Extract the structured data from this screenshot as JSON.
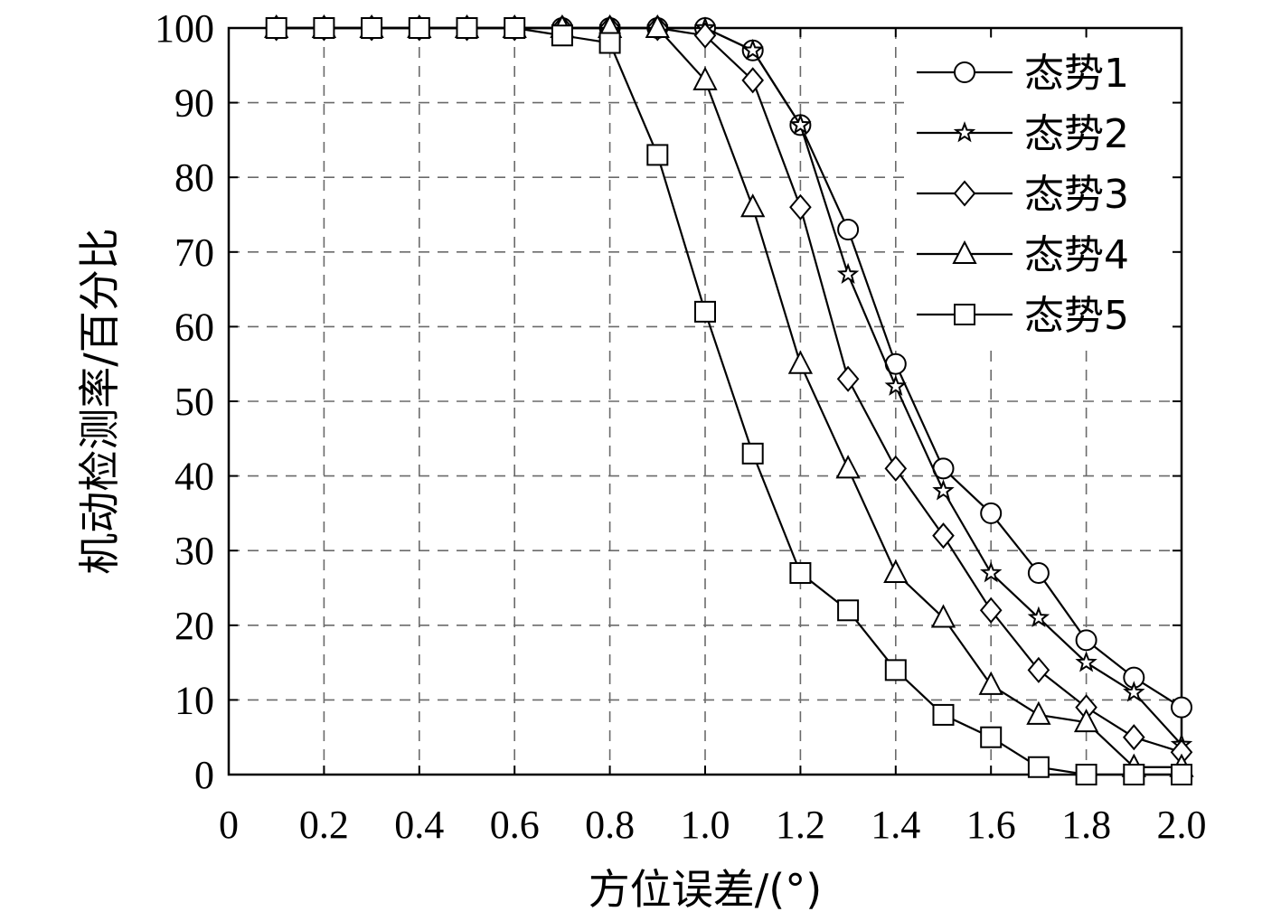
{
  "chart_data": {
    "type": "line",
    "title": "",
    "xlabel": "方位误差/(°)",
    "ylabel": "机动检测率/百分比",
    "xlim": [
      0,
      2.0
    ],
    "ylim": [
      0,
      100
    ],
    "xticks": [
      "0",
      "0.2",
      "0.4",
      "0.6",
      "0.8",
      "1.0",
      "1.2",
      "1.4",
      "1.6",
      "1.8",
      "2.0"
    ],
    "yticks": [
      "0",
      "10",
      "20",
      "30",
      "40",
      "50",
      "60",
      "70",
      "80",
      "90",
      "100"
    ],
    "grid": true,
    "legend_position": "top-right",
    "x": [
      0.1,
      0.2,
      0.3,
      0.4,
      0.5,
      0.6,
      0.7,
      0.8,
      0.9,
      1.0,
      1.1,
      1.2,
      1.3,
      1.4,
      1.5,
      1.6,
      1.7,
      1.8,
      1.9,
      2.0
    ],
    "series": [
      {
        "name": "态势1",
        "marker": "circle",
        "values": [
          100,
          100,
          100,
          100,
          100,
          100,
          100,
          100,
          100,
          100,
          97,
          87,
          73,
          55,
          41,
          35,
          27,
          18,
          13,
          9
        ]
      },
      {
        "name": "态势2",
        "marker": "star",
        "values": [
          100,
          100,
          100,
          100,
          100,
          100,
          100,
          100,
          100,
          100,
          97,
          87,
          67,
          52,
          38,
          27,
          21,
          15,
          11,
          4
        ]
      },
      {
        "name": "态势3",
        "marker": "diamond",
        "values": [
          100,
          100,
          100,
          100,
          100,
          100,
          100,
          100,
          100,
          99,
          93,
          76,
          53,
          41,
          32,
          22,
          14,
          9,
          5,
          3
        ]
      },
      {
        "name": "态势4",
        "marker": "triangle",
        "values": [
          100,
          100,
          100,
          100,
          100,
          100,
          100,
          100,
          100,
          93,
          76,
          55,
          41,
          27,
          21,
          12,
          8,
          7,
          1,
          1
        ]
      },
      {
        "name": "态势5",
        "marker": "square",
        "values": [
          100,
          100,
          100,
          100,
          100,
          100,
          99,
          98,
          83,
          62,
          43,
          27,
          22,
          14,
          8,
          5,
          1,
          0,
          0,
          0
        ]
      }
    ]
  }
}
